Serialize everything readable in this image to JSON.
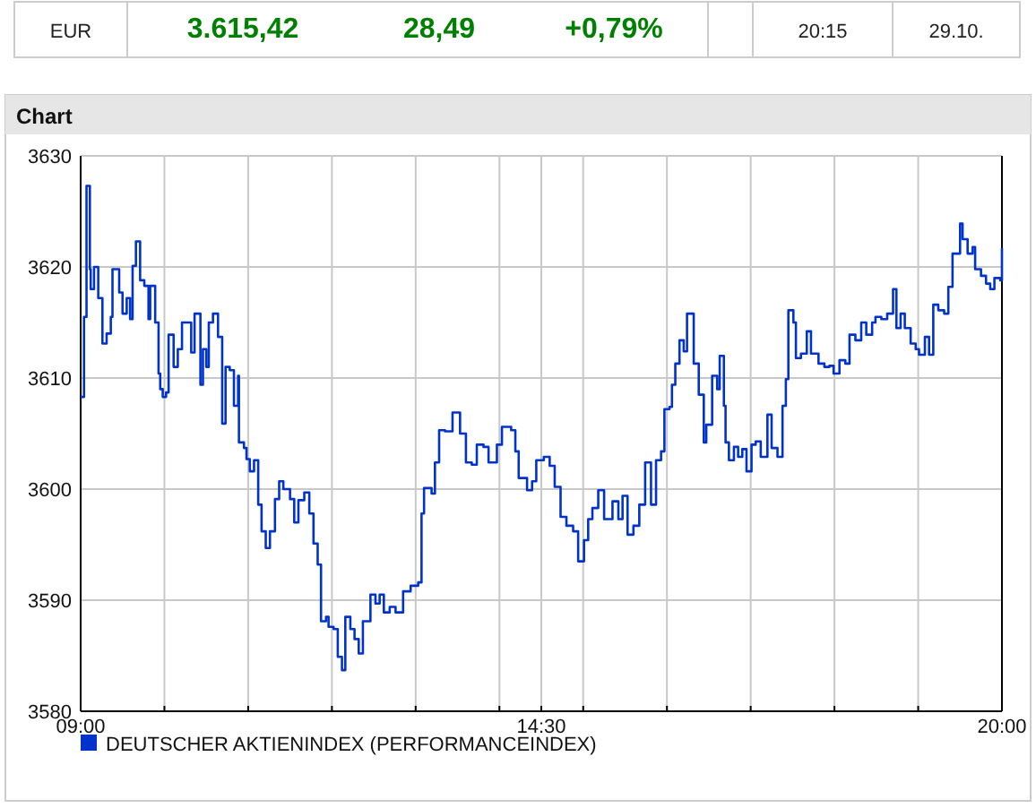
{
  "chart_data": {
    "type": "step",
    "title": "Chart",
    "annotations": [
      "EUR",
      "3.615,42",
      "28,49",
      "+0,79%",
      "20:15",
      "29.10."
    ],
    "xlim": [
      9,
      20
    ],
    "xticks": [
      {
        "value": 9,
        "label": "09:00"
      },
      {
        "value": 10,
        "label": null
      },
      {
        "value": 11,
        "label": null
      },
      {
        "value": 12,
        "label": null
      },
      {
        "value": 13,
        "label": null
      },
      {
        "value": 14,
        "label": null
      },
      {
        "value": 14.5,
        "label": "14:30"
      },
      {
        "value": 15,
        "label": null
      },
      {
        "value": 16,
        "label": null
      },
      {
        "value": 17,
        "label": null
      },
      {
        "value": 18,
        "label": null
      },
      {
        "value": 19,
        "label": null
      },
      {
        "value": 20,
        "label": "20:00"
      }
    ],
    "ylim": [
      3580,
      3630
    ],
    "yticks": [
      3580,
      3590,
      3600,
      3610,
      3620,
      3630
    ],
    "grid": true,
    "legend": "bottom",
    "line_style": "solid",
    "series": [
      {
        "name": "DEUTSCHER AKTIENINDEX (PERFORMANCEINDEX)",
        "color": "#0033cc",
        "x": [
          9.0,
          9.04,
          9.07,
          9.11,
          9.12,
          9.16,
          9.21,
          9.26,
          9.31,
          9.36,
          9.38,
          9.43,
          9.46,
          9.5,
          9.55,
          9.59,
          9.62,
          9.66,
          9.71,
          9.76,
          9.81,
          9.83,
          9.89,
          9.93,
          9.95,
          9.98,
          10.02,
          10.05,
          10.11,
          10.16,
          10.21,
          10.26,
          10.32,
          10.36,
          10.43,
          10.46,
          10.5,
          10.53,
          10.58,
          10.64,
          10.69,
          10.73,
          10.78,
          10.83,
          10.88,
          10.89,
          10.95,
          10.98,
          11.02,
          11.07,
          11.12,
          11.16,
          11.21,
          11.26,
          11.32,
          11.37,
          11.42,
          11.5,
          11.55,
          11.6,
          11.67,
          11.73,
          11.78,
          11.83,
          11.87,
          11.93,
          11.96,
          12.02,
          12.07,
          12.12,
          12.16,
          12.22,
          12.27,
          12.32,
          12.37,
          12.46,
          12.52,
          12.57,
          12.62,
          12.69,
          12.76,
          12.85,
          12.94,
          13.03,
          13.07,
          13.1,
          13.19,
          13.23,
          13.28,
          13.35,
          13.44,
          13.53,
          13.6,
          13.67,
          13.73,
          13.81,
          13.87,
          13.97,
          14.03,
          14.14,
          14.19,
          14.23,
          14.33,
          14.39,
          14.44,
          14.53,
          14.6,
          14.66,
          14.73,
          14.8,
          14.88,
          14.94,
          15.01,
          15.06,
          15.11,
          15.18,
          15.25,
          15.35,
          15.42,
          15.47,
          15.53,
          15.6,
          15.67,
          15.74,
          15.81,
          15.87,
          15.93,
          15.97,
          16.03,
          16.06,
          16.1,
          16.15,
          16.2,
          16.24,
          16.32,
          16.38,
          16.44,
          16.47,
          16.54,
          16.6,
          16.63,
          16.68,
          16.7,
          16.74,
          16.8,
          16.85,
          16.9,
          16.95,
          17.01,
          17.06,
          17.12,
          17.2,
          17.25,
          17.32,
          17.38,
          17.42,
          17.45,
          17.51,
          17.54,
          17.6,
          17.67,
          17.72,
          17.81,
          17.88,
          17.94,
          17.99,
          18.06,
          18.13,
          18.18,
          18.25,
          18.32,
          18.38,
          18.45,
          18.49,
          18.56,
          18.63,
          18.7,
          18.74,
          18.79,
          18.84,
          18.91,
          18.97,
          19.01,
          19.08,
          19.13,
          19.18,
          19.24,
          19.31,
          19.36,
          19.41,
          19.45,
          19.5,
          19.53,
          19.59,
          19.65,
          19.68,
          19.75,
          19.81,
          19.86,
          19.91,
          19.98,
          20.0
        ],
        "values": [
          3608.3,
          3615.5,
          3627.3,
          3619.8,
          3618,
          3620,
          3617.2,
          3613.1,
          3614,
          3615.5,
          3619.8,
          3619.8,
          3617.7,
          3615.8,
          3617.2,
          3615.3,
          3620.1,
          3622.3,
          3618.8,
          3618.3,
          3615.3,
          3618.3,
          3615,
          3610.4,
          3609,
          3608.3,
          3608.7,
          3613.9,
          3611,
          3612.6,
          3615,
          3615,
          3612.3,
          3615.8,
          3609.4,
          3612.6,
          3611,
          3615,
          3615.8,
          3613.7,
          3605.9,
          3611,
          3610.7,
          3607.5,
          3610.2,
          3604.2,
          3603.7,
          3602.7,
          3601.6,
          3602.6,
          3598.6,
          3596.2,
          3594.7,
          3596.2,
          3599.1,
          3600.7,
          3600,
          3599.1,
          3597,
          3599,
          3599.7,
          3597.8,
          3595.1,
          3593.2,
          3588.1,
          3588.5,
          3587.6,
          3587.4,
          3584.9,
          3583.7,
          3588.5,
          3587.4,
          3586.5,
          3585.2,
          3588.1,
          3590.5,
          3589.7,
          3590.5,
          3588.9,
          3589.4,
          3588.9,
          3590.8,
          3591.3,
          3591.6,
          3597.8,
          3600.1,
          3599.6,
          3602.4,
          3605.3,
          3605.2,
          3606.9,
          3605,
          3602.4,
          3602.2,
          3604,
          3603.8,
          3602.4,
          3604,
          3605.6,
          3605.3,
          3603.4,
          3601,
          3599.9,
          3600.7,
          3602.6,
          3602.9,
          3602.1,
          3600.2,
          3597.5,
          3596.7,
          3596.2,
          3593.5,
          3595.4,
          3597.3,
          3598.3,
          3599.9,
          3597.3,
          3598.9,
          3597.3,
          3599.4,
          3595.9,
          3596.7,
          3598.6,
          3602.4,
          3598.6,
          3602.6,
          3603.4,
          3607.2,
          3607.4,
          3609.4,
          3611.3,
          3613.4,
          3612.4,
          3615.8,
          3611.3,
          3608.5,
          3604.2,
          3605.8,
          3610.2,
          3609,
          3612,
          3607.5,
          3604.2,
          3602.6,
          3603.8,
          3602.9,
          3603.6,
          3601.6,
          3604,
          3604.3,
          3602.9,
          3606.7,
          3603.7,
          3602.9,
          3607.5,
          3609.9,
          3616.1,
          3615,
          3611.8,
          3612.2,
          3614.2,
          3612.2,
          3611.3,
          3611,
          3611.1,
          3610.4,
          3611.6,
          3611.3,
          3613.9,
          3613.4,
          3615,
          3613.9,
          3615,
          3615.5,
          3615.3,
          3615.8,
          3618,
          3614.5,
          3615.8,
          3614.5,
          3613.1,
          3612.6,
          3612.1,
          3613.7,
          3612.1,
          3616.6,
          3616.1,
          3615.8,
          3618.2,
          3621.2,
          3621.2,
          3623.9,
          3622.5,
          3621.2,
          3621.8,
          3619.8,
          3619.2,
          3618.5,
          3618,
          3619,
          3618.8,
          3621.7
        ]
      }
    ]
  }
}
